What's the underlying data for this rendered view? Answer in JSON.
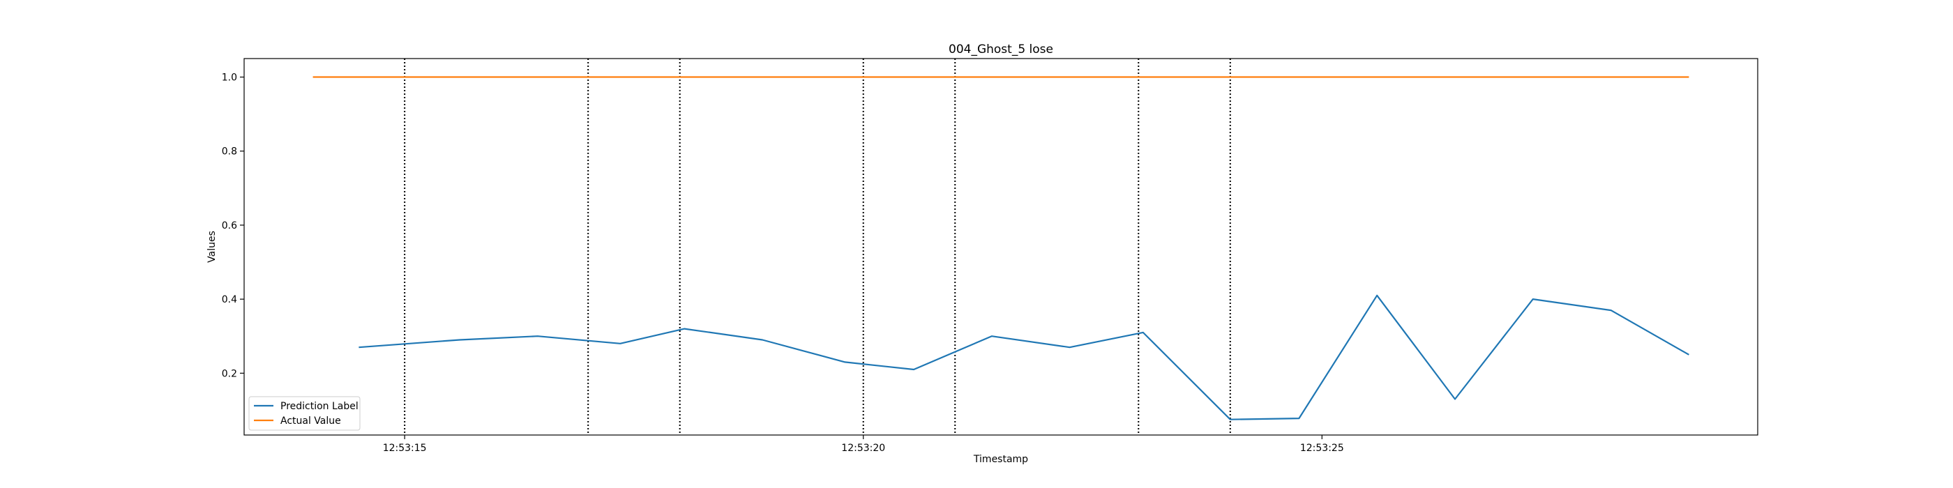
{
  "chart_data": {
    "type": "line",
    "title": "004_Ghost_5 lose",
    "xlabel": "Timestamp",
    "ylabel": "Values",
    "x_ticks": [
      "12:53:15",
      "12:53:20",
      "12:53:25"
    ],
    "y_ticks": [
      "0.2",
      "0.4",
      "0.6",
      "0.8",
      "1.0"
    ],
    "xlim": [
      "12:53:13.25",
      "12:53:29.75"
    ],
    "ylim": [
      0.033,
      1.05
    ],
    "grid": false,
    "legend_position": "lower-left",
    "series": [
      {
        "name": "Prediction Label",
        "color": "#1f77b4",
        "x": [
          "12:53:14.50",
          "12:53:15.60",
          "12:53:16.45",
          "12:53:17.35",
          "12:53:18.05",
          "12:53:18.90",
          "12:53:19.80",
          "12:53:20.55",
          "12:53:21.40",
          "12:53:22.25",
          "12:53:23.05",
          "12:53:24.00",
          "12:53:24.75",
          "12:53:25.60",
          "12:53:26.45",
          "12:53:27.30",
          "12:53:28.15",
          "12:53:29.00"
        ],
        "values": [
          0.27,
          0.29,
          0.3,
          0.28,
          0.32,
          0.29,
          0.23,
          0.21,
          0.3,
          0.27,
          0.31,
          0.075,
          0.078,
          0.41,
          0.13,
          0.4,
          0.37,
          0.25
        ]
      },
      {
        "name": "Actual Value",
        "color": "#ff7f0e",
        "x": [
          "12:53:14.00",
          "12:53:29.00"
        ],
        "values": [
          1.0,
          1.0
        ]
      }
    ],
    "vertical_lines": [
      "12:53:15.00",
      "12:53:17.00",
      "12:53:18.00",
      "12:53:20.00",
      "12:53:21.00",
      "12:53:23.00",
      "12:53:24.00"
    ]
  }
}
